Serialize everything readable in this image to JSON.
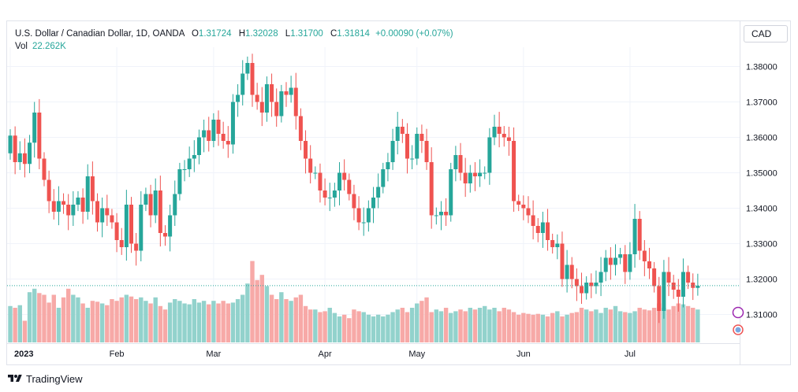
{
  "header": {
    "symbol": "U.S. Dollar / Canadian Dollar, 1D, OANDA",
    "open_label": "O",
    "open": "1.31724",
    "high_label": "H",
    "high": "1.32028",
    "low_label": "L",
    "low": "1.31700",
    "close_label": "C",
    "close": "1.31814",
    "change": "+0.00090 (+0.07%)",
    "vol_label": "Vol",
    "vol": "22.262K"
  },
  "currency_button": "CAD",
  "branding": {
    "logo_text": "TradingView"
  },
  "colors": {
    "up": "#26a69a",
    "down": "#ef5350",
    "up_vol": "#92d2cc",
    "down_vol": "#f7a9a7",
    "grid": "#f0f3fa"
  },
  "chart_data": {
    "type": "candlestick",
    "price_axis": {
      "ticks": [
        1.31,
        1.32,
        1.33,
        1.34,
        1.35,
        1.36,
        1.37,
        1.38
      ],
      "tick_labels": [
        "1.31000",
        "1.32000",
        "1.33000",
        "1.34000",
        "1.35000",
        "1.36000",
        "1.37000",
        "1.38000"
      ],
      "ylim": [
        1.301,
        1.387
      ]
    },
    "time_axis": {
      "labels": [
        {
          "text": "2023",
          "index": 0
        },
        {
          "text": "Feb",
          "index": 22
        },
        {
          "text": "Mar",
          "index": 42
        },
        {
          "text": "Apr",
          "index": 65
        },
        {
          "text": "May",
          "index": 84
        },
        {
          "text": "Jun",
          "index": 106
        },
        {
          "text": "Jul",
          "index": 128
        }
      ]
    },
    "last_close": 1.31814,
    "closes": [
      1.3605,
      1.353,
      1.3555,
      1.3525,
      1.3585,
      1.367,
      1.354,
      1.348,
      1.342,
      1.339,
      1.342,
      1.341,
      1.338,
      1.341,
      1.343,
      1.339,
      1.349,
      1.342,
      1.336,
      1.34,
      1.338,
      1.336,
      1.331,
      1.329,
      1.341,
      1.33,
      1.328,
      1.341,
      1.344,
      1.338,
      1.345,
      1.333,
      1.332,
      1.338,
      1.344,
      1.351,
      1.351,
      1.354,
      1.355,
      1.36,
      1.362,
      1.359,
      1.365,
      1.361,
      1.359,
      1.358,
      1.37,
      1.372,
      1.378,
      1.381,
      1.372,
      1.37,
      1.367,
      1.375,
      1.37,
      1.366,
      1.373,
      1.372,
      1.374,
      1.366,
      1.359,
      1.354,
      1.35,
      1.35,
      1.345,
      1.343,
      1.343,
      1.345,
      1.35,
      1.348,
      1.344,
      1.34,
      1.336,
      1.336,
      1.34,
      1.343,
      1.346,
      1.351,
      1.353,
      1.359,
      1.363,
      1.361,
      1.354,
      1.354,
      1.361,
      1.359,
      1.353,
      1.338,
      1.338,
      1.339,
      1.338,
      1.351,
      1.355,
      1.35,
      1.347,
      1.35,
      1.349,
      1.35,
      1.35,
      1.36,
      1.363,
      1.361,
      1.36,
      1.359,
      1.342,
      1.341,
      1.34,
      1.338,
      1.335,
      1.333,
      1.336,
      1.331,
      1.329,
      1.33,
      1.32,
      1.324,
      1.32,
      1.318,
      1.316,
      1.319,
      1.318,
      1.319,
      1.322,
      1.326,
      1.324,
      1.326,
      1.327,
      1.322,
      1.327,
      1.337,
      1.328,
      1.325,
      1.323,
      1.318,
      1.311,
      1.322,
      1.319,
      1.317,
      1.315,
      1.322,
      1.319,
      1.3175,
      1.3181
    ],
    "volume_relative": [
      0.42,
      0.4,
      0.43,
      0.25,
      0.58,
      0.62,
      0.57,
      0.55,
      0.46,
      0.55,
      0.4,
      0.52,
      0.62,
      0.55,
      0.52,
      0.45,
      0.4,
      0.48,
      0.47,
      0.45,
      0.43,
      0.5,
      0.48,
      0.52,
      0.55,
      0.53,
      0.5,
      0.52,
      0.48,
      0.45,
      0.52,
      0.42,
      0.38,
      0.46,
      0.5,
      0.48,
      0.45,
      0.44,
      0.5,
      0.46,
      0.48,
      0.44,
      0.48,
      0.45,
      0.48,
      0.45,
      0.46,
      0.5,
      0.55,
      0.68,
      0.94,
      0.72,
      0.78,
      0.65,
      0.55,
      0.5,
      0.58,
      0.5,
      0.48,
      0.52,
      0.55,
      0.42,
      0.38,
      0.38,
      0.35,
      0.36,
      0.4,
      0.34,
      0.3,
      0.32,
      0.28,
      0.38,
      0.36,
      0.35,
      0.32,
      0.3,
      0.32,
      0.3,
      0.32,
      0.35,
      0.38,
      0.4,
      0.35,
      0.4,
      0.45,
      0.48,
      0.52,
      0.35,
      0.38,
      0.36,
      0.4,
      0.34,
      0.36,
      0.38,
      0.36,
      0.4,
      0.38,
      0.4,
      0.42,
      0.38,
      0.4,
      0.36,
      0.4,
      0.38,
      0.35,
      0.32,
      0.34,
      0.33,
      0.32,
      0.33,
      0.32,
      0.3,
      0.34,
      0.36,
      0.3,
      0.32,
      0.34,
      0.35,
      0.4,
      0.38,
      0.36,
      0.38,
      0.34,
      0.4,
      0.38,
      0.42,
      0.36,
      0.35,
      0.34,
      0.36,
      0.4,
      0.38,
      0.37,
      0.4,
      0.45,
      0.4,
      0.38,
      0.42,
      0.45,
      0.44,
      0.42,
      0.4,
      0.38
    ]
  }
}
